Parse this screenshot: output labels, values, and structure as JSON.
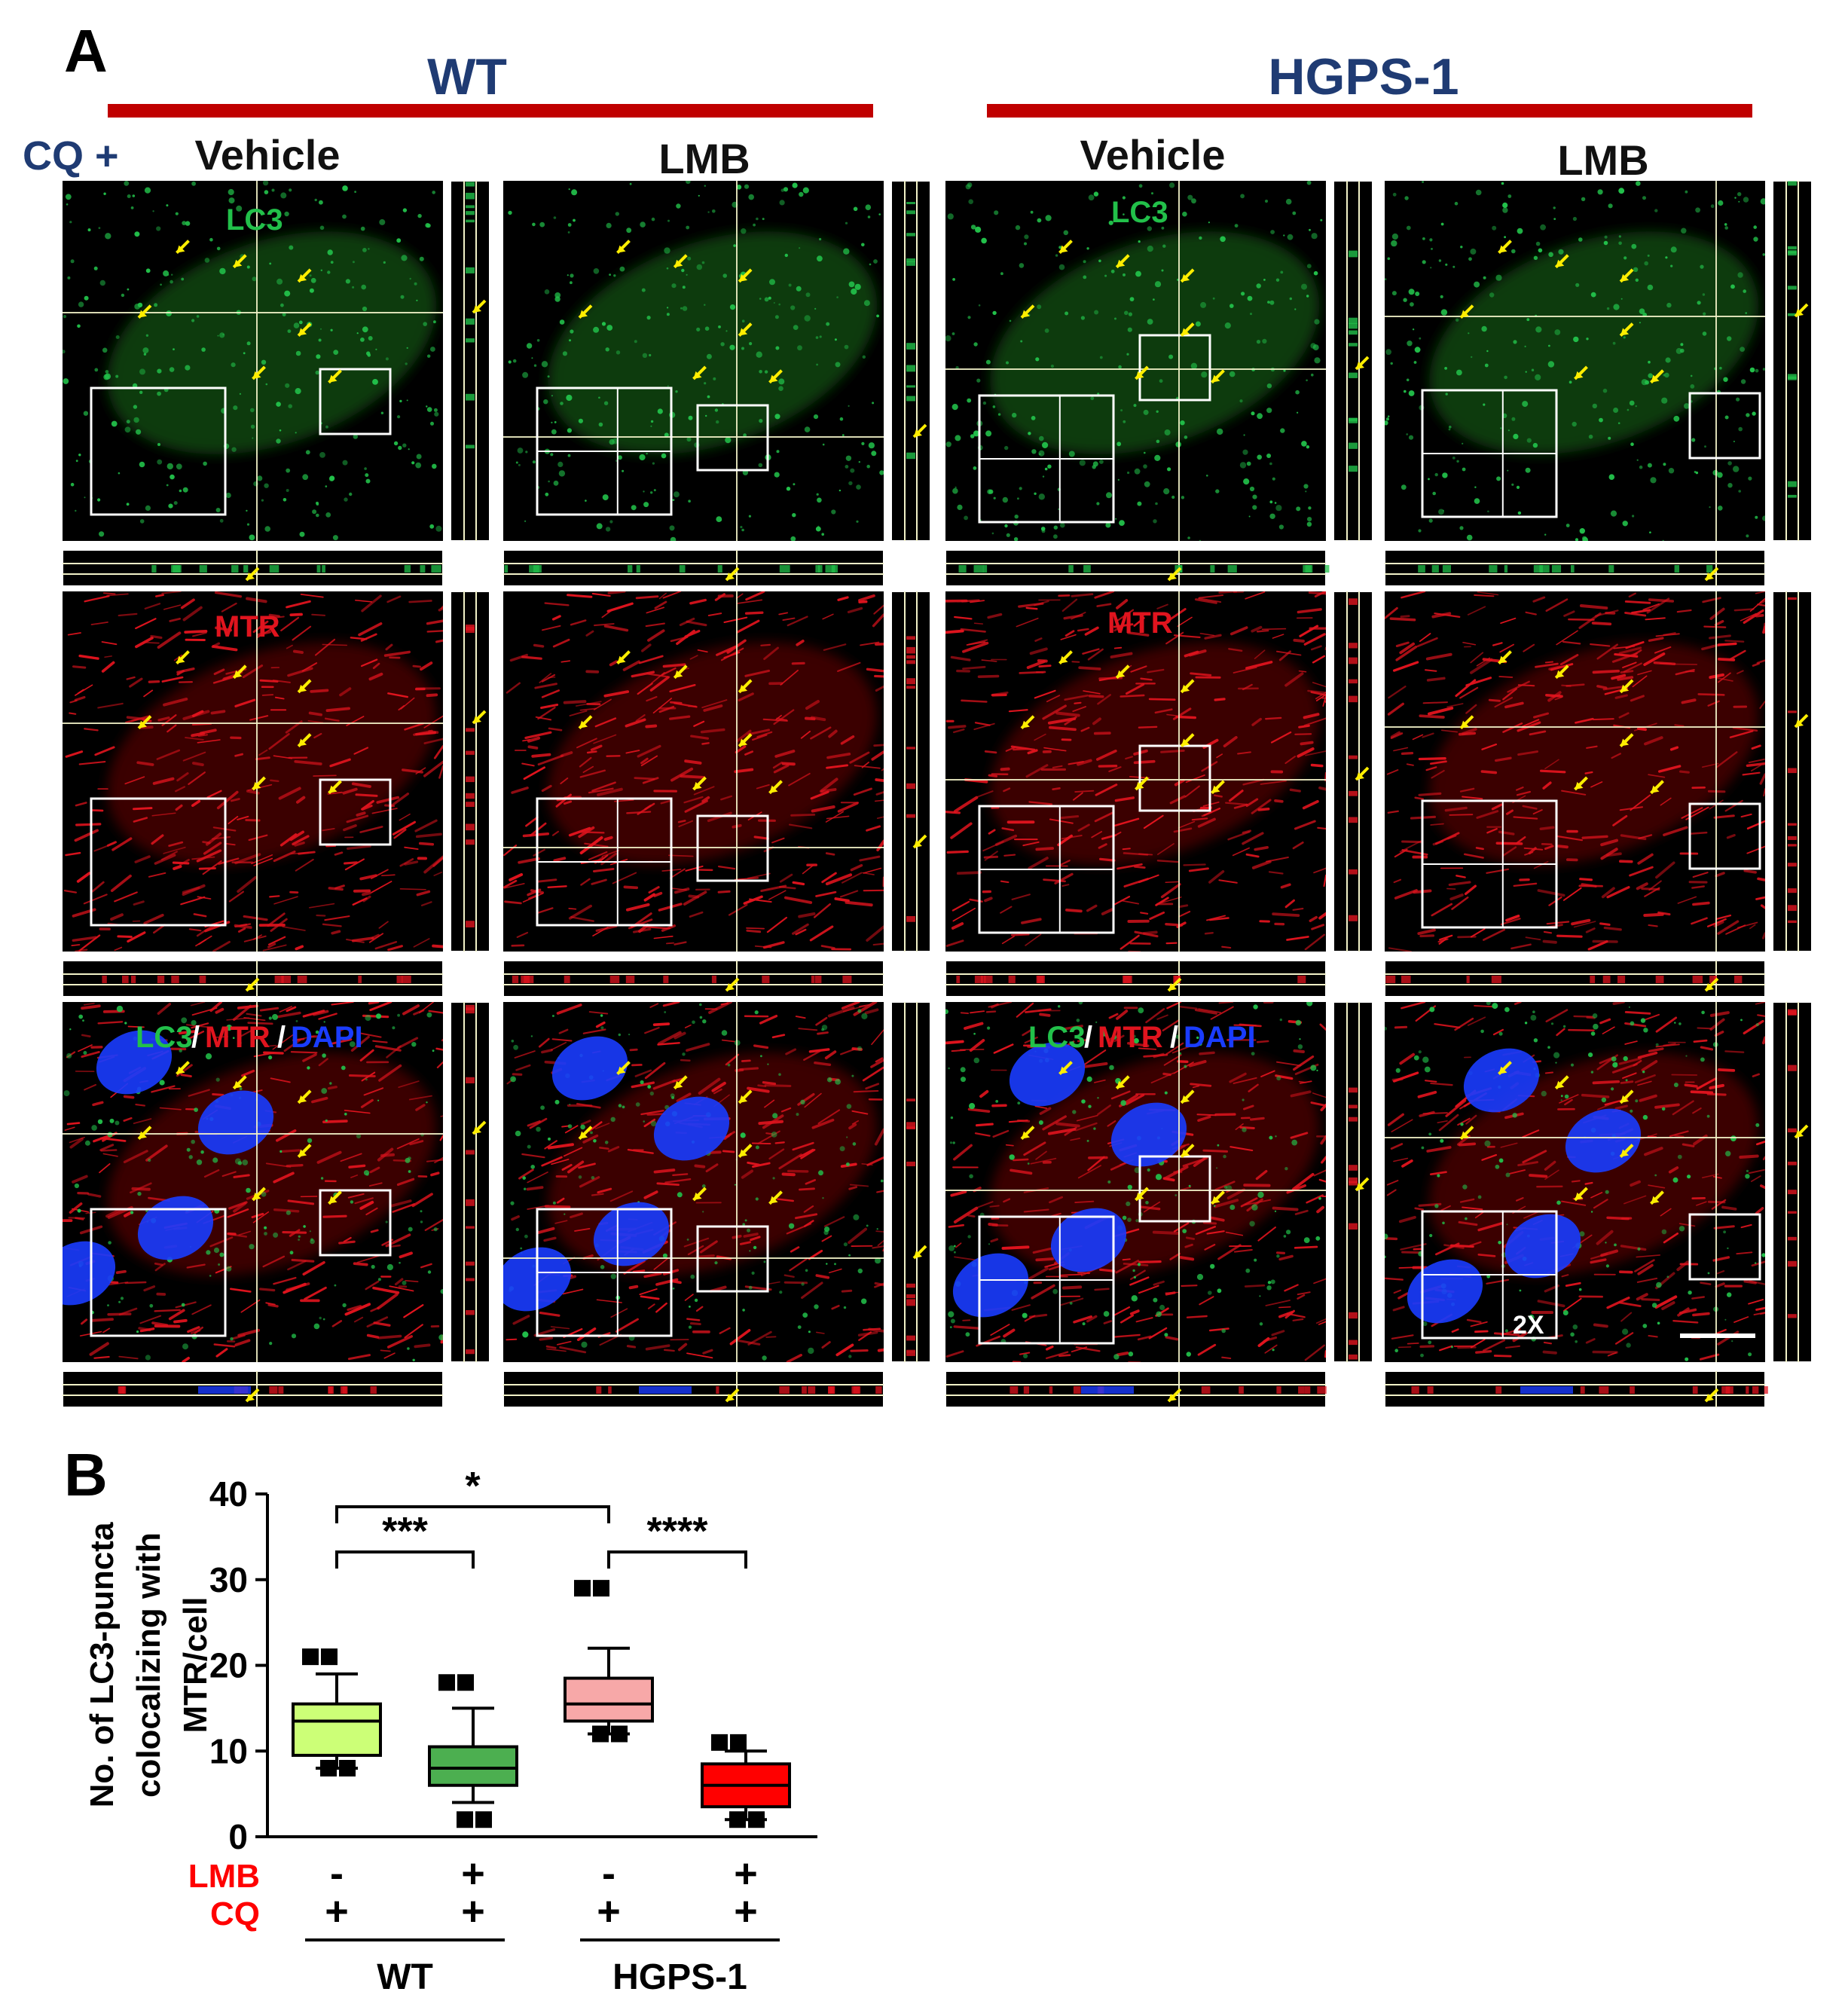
{
  "panel_a": {
    "letter": "A",
    "groups": [
      "WT",
      "HGPS-1"
    ],
    "cq_label": "CQ +",
    "conditions": [
      "Vehicle",
      "LMB",
      "Vehicle",
      "LMB"
    ],
    "channel_labels": {
      "lc3": "LC3",
      "mtr": "MTR",
      "merge_lc3": "LC3",
      "merge_mtr": "MTR",
      "merge_dapi": "DAPI",
      "slash": "/"
    },
    "zoom_label": "2X",
    "colors": {
      "group_bar": "#c00000",
      "group_text": "#1f3b73",
      "lc3": "#22c04a",
      "mtr": "#e0141e",
      "dapi": "#1a3cff",
      "arrow": "#ffee00"
    }
  },
  "panel_b": {
    "letter": "B",
    "chart_data": {
      "type": "box",
      "ylabel_lines": [
        "No. of LC3-puncta",
        "colocalizing with",
        "MTR/cell"
      ],
      "ylim": [
        0,
        40
      ],
      "yticks": [
        "0",
        "10",
        "20",
        "30",
        "40"
      ],
      "treatment_rows": [
        {
          "label": "LMB",
          "values": [
            "-",
            "+",
            "-",
            "+"
          ]
        },
        {
          "label": "CQ",
          "values": [
            "+",
            "+",
            "+",
            "+"
          ]
        }
      ],
      "group_labels": [
        "WT",
        "HGPS-1"
      ],
      "series": [
        {
          "group": "WT",
          "lmb": "-",
          "color": "#ccff77",
          "min": 8,
          "q1": 9.5,
          "median": 13.5,
          "q3": 15.5,
          "max": 19,
          "outliers": [
            21,
            8
          ]
        },
        {
          "group": "WT",
          "lmb": "+",
          "color": "#4caf50",
          "min": 4,
          "q1": 6,
          "median": 8,
          "q3": 10.5,
          "max": 15,
          "outliers": [
            18,
            2
          ]
        },
        {
          "group": "HGPS-1",
          "lmb": "-",
          "color": "#f7a8a8",
          "min": 12,
          "q1": 13.5,
          "median": 15.5,
          "q3": 18.5,
          "max": 22,
          "outliers": [
            29,
            12
          ]
        },
        {
          "group": "HGPS-1",
          "lmb": "+",
          "color": "#ff0000",
          "min": 2,
          "q1": 3.5,
          "median": 6,
          "q3": 8.5,
          "max": 10,
          "outliers": [
            11,
            2
          ]
        }
      ],
      "significance": [
        {
          "from": 0,
          "to": 3,
          "label": "*"
        },
        {
          "from": 0,
          "to": 1,
          "label": "***"
        },
        {
          "from": 2,
          "to": 3,
          "label": "****"
        }
      ]
    }
  }
}
